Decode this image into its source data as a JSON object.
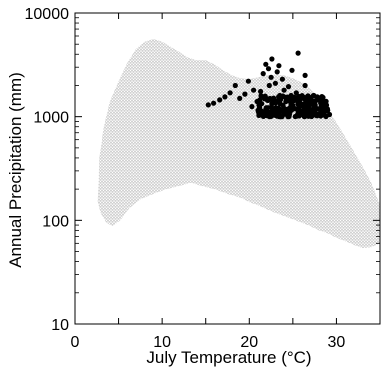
{
  "chart_data": {
    "type": "scatter",
    "title": "",
    "xlabel": "July Temperature (°C)",
    "ylabel": "Annual Precipitation (mm)",
    "xlim": [
      0,
      35
    ],
    "ylim": [
      10,
      10000
    ],
    "y_scale": "log",
    "grid": false,
    "legend": "none",
    "x_ticks": [
      0,
      10,
      20,
      30
    ],
    "x_tick_labels": [
      "0",
      "10",
      "20",
      "30"
    ],
    "y_ticks": [
      10,
      100,
      1000,
      10000
    ],
    "y_tick_labels": [
      "10",
      "100",
      "1000",
      "10000"
    ],
    "series": [
      {
        "marker": "small open circles",
        "color": "#b4b4b4",
        "envelope": [
          [
            2.6,
            150
          ],
          [
            3.0,
            115
          ],
          [
            3.6,
            95
          ],
          [
            4.3,
            88
          ],
          [
            5.2,
            100
          ],
          [
            6.2,
            130
          ],
          [
            7.5,
            160
          ],
          [
            9.0,
            180
          ],
          [
            10.5,
            200
          ],
          [
            12.0,
            215
          ],
          [
            13.3,
            230
          ],
          [
            14.5,
            215
          ],
          [
            16.0,
            200
          ],
          [
            17.5,
            180
          ],
          [
            19.0,
            165
          ],
          [
            20.0,
            150
          ],
          [
            21.0,
            140
          ],
          [
            22.0,
            128
          ],
          [
            23.0,
            118
          ],
          [
            24.0,
            110
          ],
          [
            25.0,
            102
          ],
          [
            26.0,
            95
          ],
          [
            27.0,
            88
          ],
          [
            28.0,
            80
          ],
          [
            29.0,
            75
          ],
          [
            30.0,
            68
          ],
          [
            31.0,
            63
          ],
          [
            32.0,
            58
          ],
          [
            33.0,
            54
          ],
          [
            34.0,
            55
          ],
          [
            35.0,
            60
          ],
          [
            35.0,
            140
          ],
          [
            34.0,
            230
          ],
          [
            33.0,
            330
          ],
          [
            32.0,
            460
          ],
          [
            31.0,
            640
          ],
          [
            30.0,
            880
          ],
          [
            29.0,
            1150
          ],
          [
            28.0,
            1500
          ],
          [
            27.0,
            1850
          ],
          [
            26.0,
            2150
          ],
          [
            25.0,
            2350
          ],
          [
            24.0,
            2500
          ],
          [
            23.0,
            2550
          ],
          [
            22.0,
            2500
          ],
          [
            21.0,
            2400
          ],
          [
            20.0,
            2300
          ],
          [
            19.0,
            2350
          ],
          [
            18.0,
            2500
          ],
          [
            17.0,
            2800
          ],
          [
            16.0,
            3200
          ],
          [
            15.0,
            3500
          ],
          [
            14.0,
            3500
          ],
          [
            13.0,
            3700
          ],
          [
            12.0,
            4200
          ],
          [
            11.0,
            4700
          ],
          [
            10.0,
            5300
          ],
          [
            9.0,
            5600
          ],
          [
            8.0,
            5300
          ],
          [
            7.0,
            4500
          ],
          [
            6.0,
            3300
          ],
          [
            5.0,
            2200
          ],
          [
            4.0,
            1400
          ],
          [
            3.3,
            800
          ],
          [
            2.8,
            400
          ],
          [
            2.6,
            150
          ]
        ]
      },
      {
        "marker": "filled circles",
        "color": "#000000",
        "points": [
          [
            15.3,
            1300
          ],
          [
            15.9,
            1350
          ],
          [
            16.6,
            1450
          ],
          [
            17.2,
            1550
          ],
          [
            17.8,
            1700
          ],
          [
            18.4,
            2000
          ],
          [
            18.9,
            1500
          ],
          [
            19.5,
            1650
          ],
          [
            19.9,
            2200
          ],
          [
            20.5,
            1800
          ],
          [
            20.3,
            1250
          ],
          [
            20.9,
            1400
          ],
          [
            21.0,
            1150
          ],
          [
            21.3,
            1750
          ],
          [
            21.6,
            2600
          ],
          [
            21.9,
            3200
          ],
          [
            22.2,
            2900
          ],
          [
            22.3,
            2000
          ],
          [
            22.5,
            2400
          ],
          [
            22.6,
            3600
          ],
          [
            22.8,
            1500
          ],
          [
            23.0,
            2100
          ],
          [
            23.2,
            2700
          ],
          [
            23.4,
            3100
          ],
          [
            23.5,
            1600
          ],
          [
            23.8,
            2300
          ],
          [
            24.0,
            1800
          ],
          [
            24.2,
            1400
          ],
          [
            24.5,
            1950
          ],
          [
            24.8,
            1600
          ],
          [
            24.9,
            2800
          ],
          [
            25.1,
            1200
          ],
          [
            25.4,
            1700
          ],
          [
            25.8,
            1450
          ],
          [
            26.1,
            1550
          ],
          [
            26.4,
            2000
          ],
          [
            26.9,
            1500
          ],
          [
            27.4,
            1600
          ],
          [
            27.8,
            1550
          ],
          [
            28.2,
            1350
          ],
          [
            28.6,
            1250
          ],
          [
            29.0,
            1150
          ],
          [
            29.2,
            1050
          ],
          [
            25.6,
            4100
          ],
          [
            26.4,
            2500
          ],
          [
            23.3,
            1100
          ],
          [
            24.6,
            1050
          ],
          [
            26.8,
            1100
          ],
          [
            27.6,
            1050
          ],
          [
            22.1,
            1120
          ]
        ],
        "dense_cluster": {
          "x": [
            21.0,
            29.0
          ],
          "y": [
            1000,
            1600
          ]
        }
      }
    ]
  }
}
